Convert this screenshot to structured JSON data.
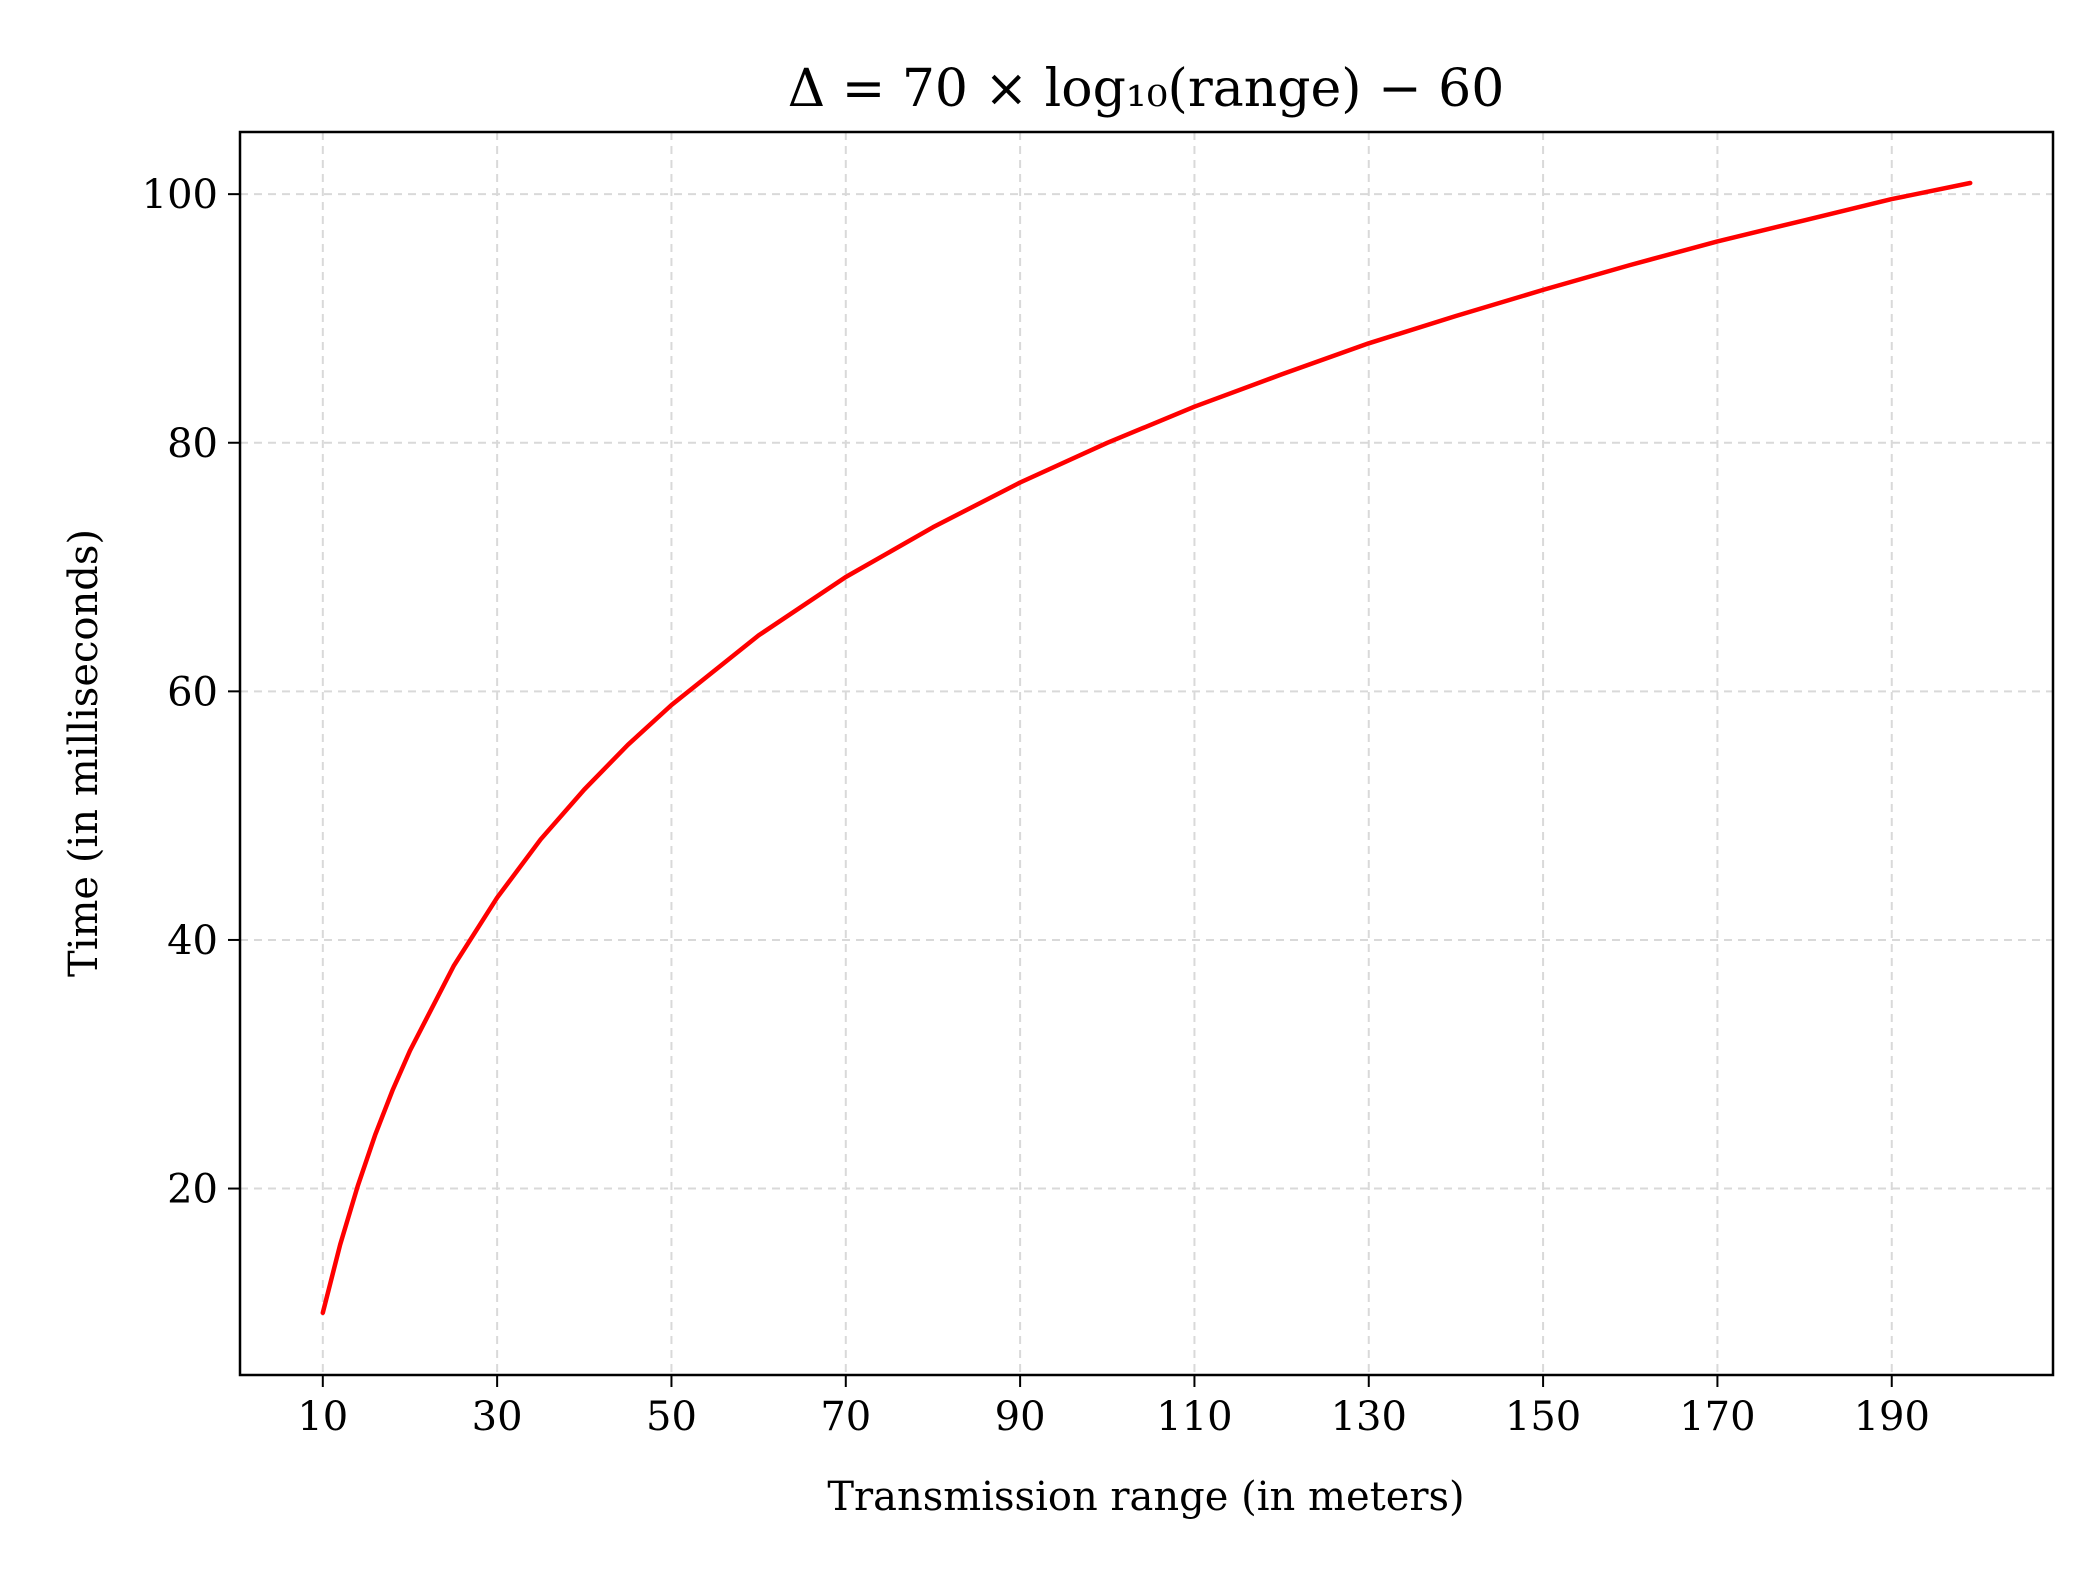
{
  "chart_data": {
    "type": "line",
    "title": "Δ = 70 × log₁₀(range) − 60",
    "xlabel": "Transmission range (in meters)",
    "ylabel": "Time (in milliseconds)",
    "xlim": [
      0.5,
      208.5
    ],
    "ylim": [
      5,
      105
    ],
    "xticks": [
      "10",
      "30",
      "50",
      "70",
      "90",
      "110",
      "130",
      "150",
      "170",
      "190"
    ],
    "yticks": [
      "20",
      "40",
      "60",
      "80",
      "100"
    ],
    "grid": true,
    "line_color": "#ff0000",
    "series": [
      {
        "x": [
          10,
          12,
          14,
          16,
          18,
          20,
          25,
          30,
          35,
          40,
          45,
          50,
          60,
          70,
          80,
          90,
          100,
          110,
          120,
          130,
          140,
          150,
          160,
          170,
          180,
          190,
          199
        ],
        "values": [
          10.0,
          15.5,
          20.2,
          24.3,
          27.9,
          31.1,
          37.9,
          43.4,
          48.1,
          52.1,
          55.7,
          58.9,
          64.5,
          69.2,
          73.2,
          76.8,
          80.0,
          82.9,
          85.5,
          88.0,
          90.2,
          92.3,
          94.3,
          96.2,
          97.9,
          99.6,
          100.9
        ]
      }
    ]
  }
}
